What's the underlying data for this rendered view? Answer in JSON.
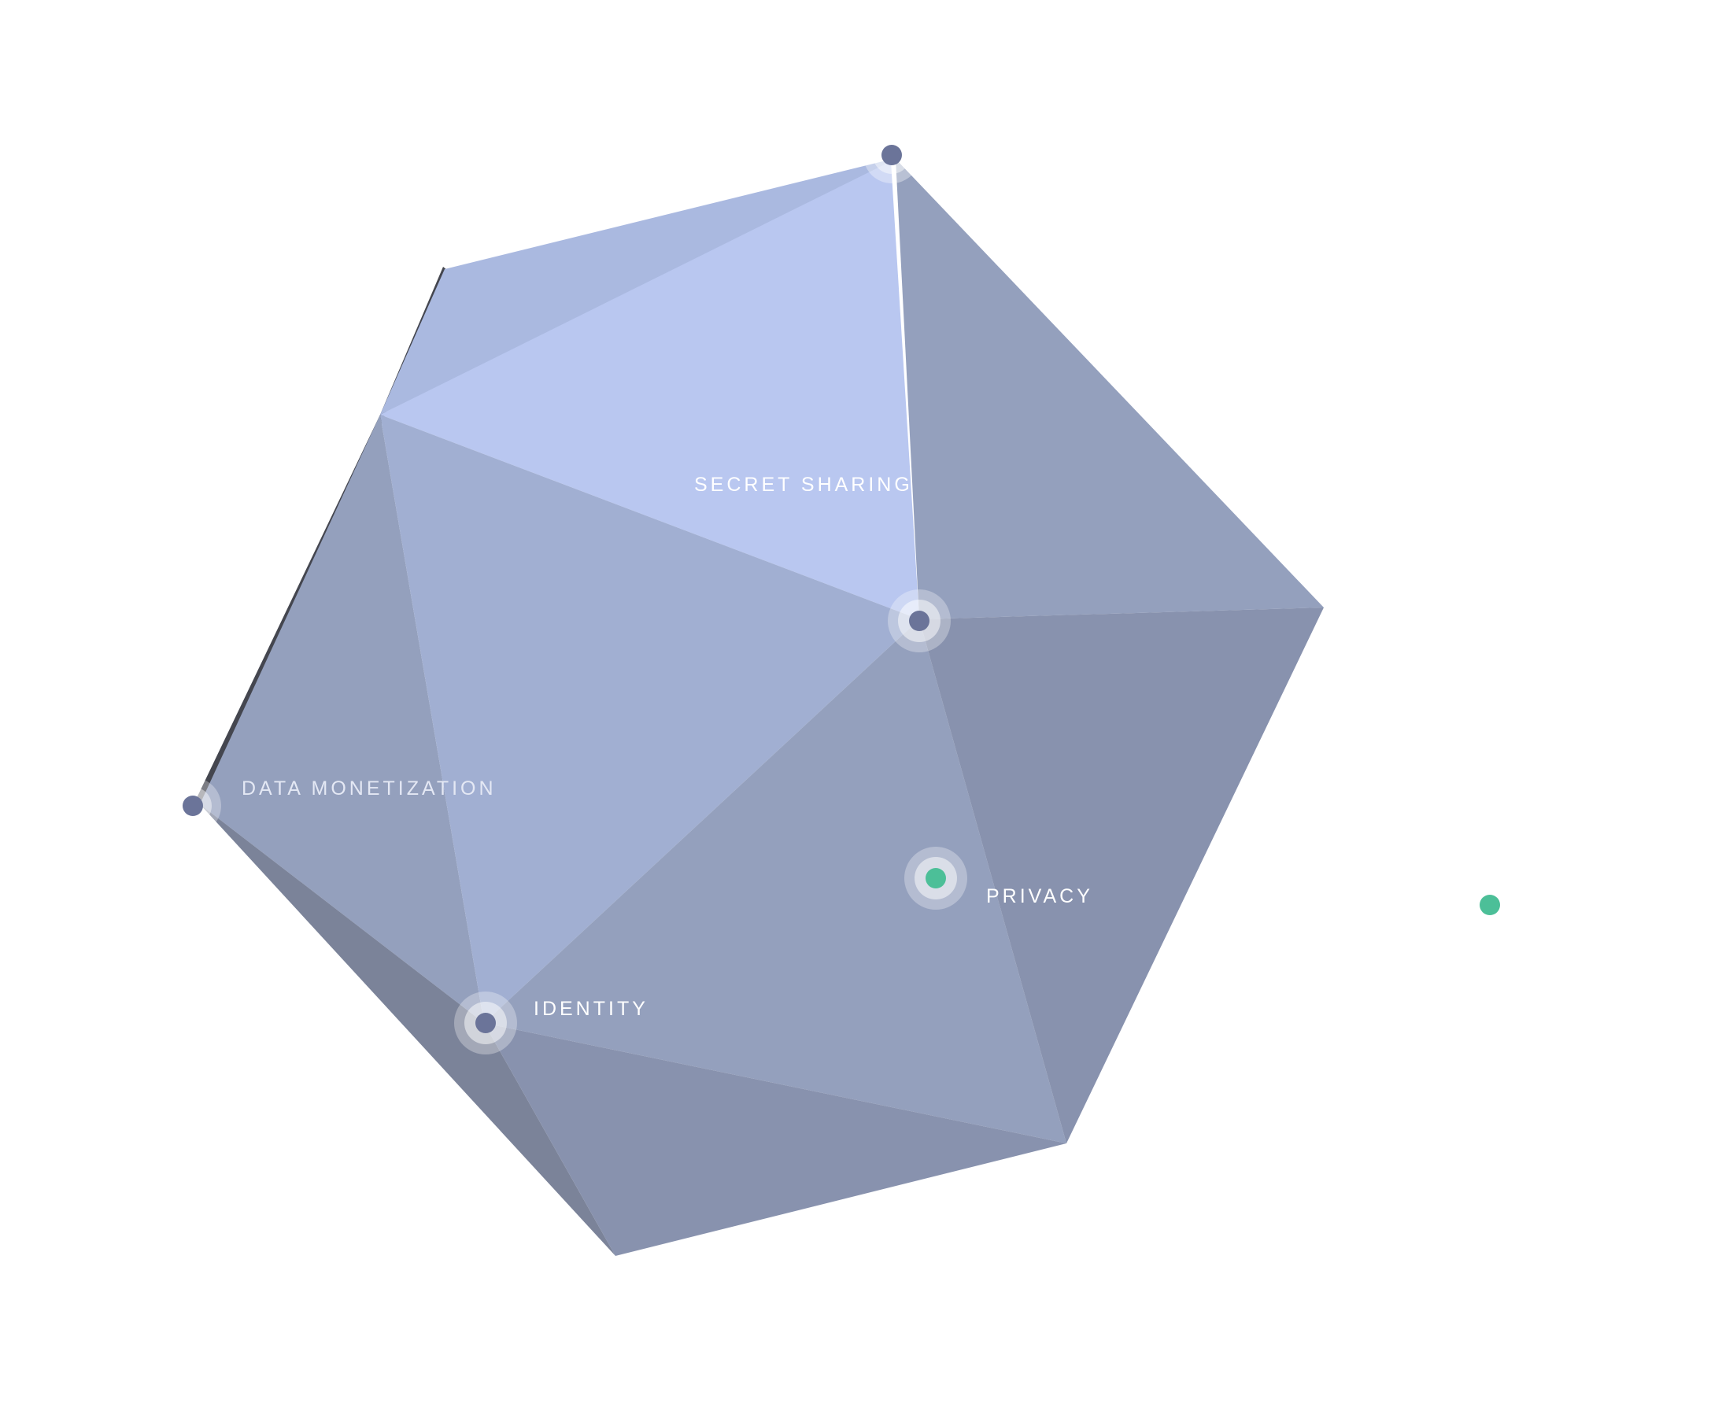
{
  "colors": {
    "background": "#ffffff",
    "node_core": "#6b7499",
    "node_active": "#4cbf98",
    "halo": "#ffffff",
    "edge_shadow": "#44464f",
    "face_top_light": "#b9c7f0",
    "face_top_left": "#aab9e0",
    "face_center": "#a1afd2",
    "face_mid": "#94a0bd",
    "face_dark": "#8892ae",
    "face_darkest": "#7b8399"
  },
  "icon": "icosahedron",
  "nodes": [
    {
      "id": "secret-sharing",
      "label": "SECRET SHARING",
      "state": "default"
    },
    {
      "id": "data-monetization",
      "label": "DATA MONETIZATION",
      "state": "default"
    },
    {
      "id": "identity",
      "label": "IDENTITY",
      "state": "default"
    },
    {
      "id": "privacy",
      "label": "PRIVACY",
      "state": "active"
    }
  ]
}
